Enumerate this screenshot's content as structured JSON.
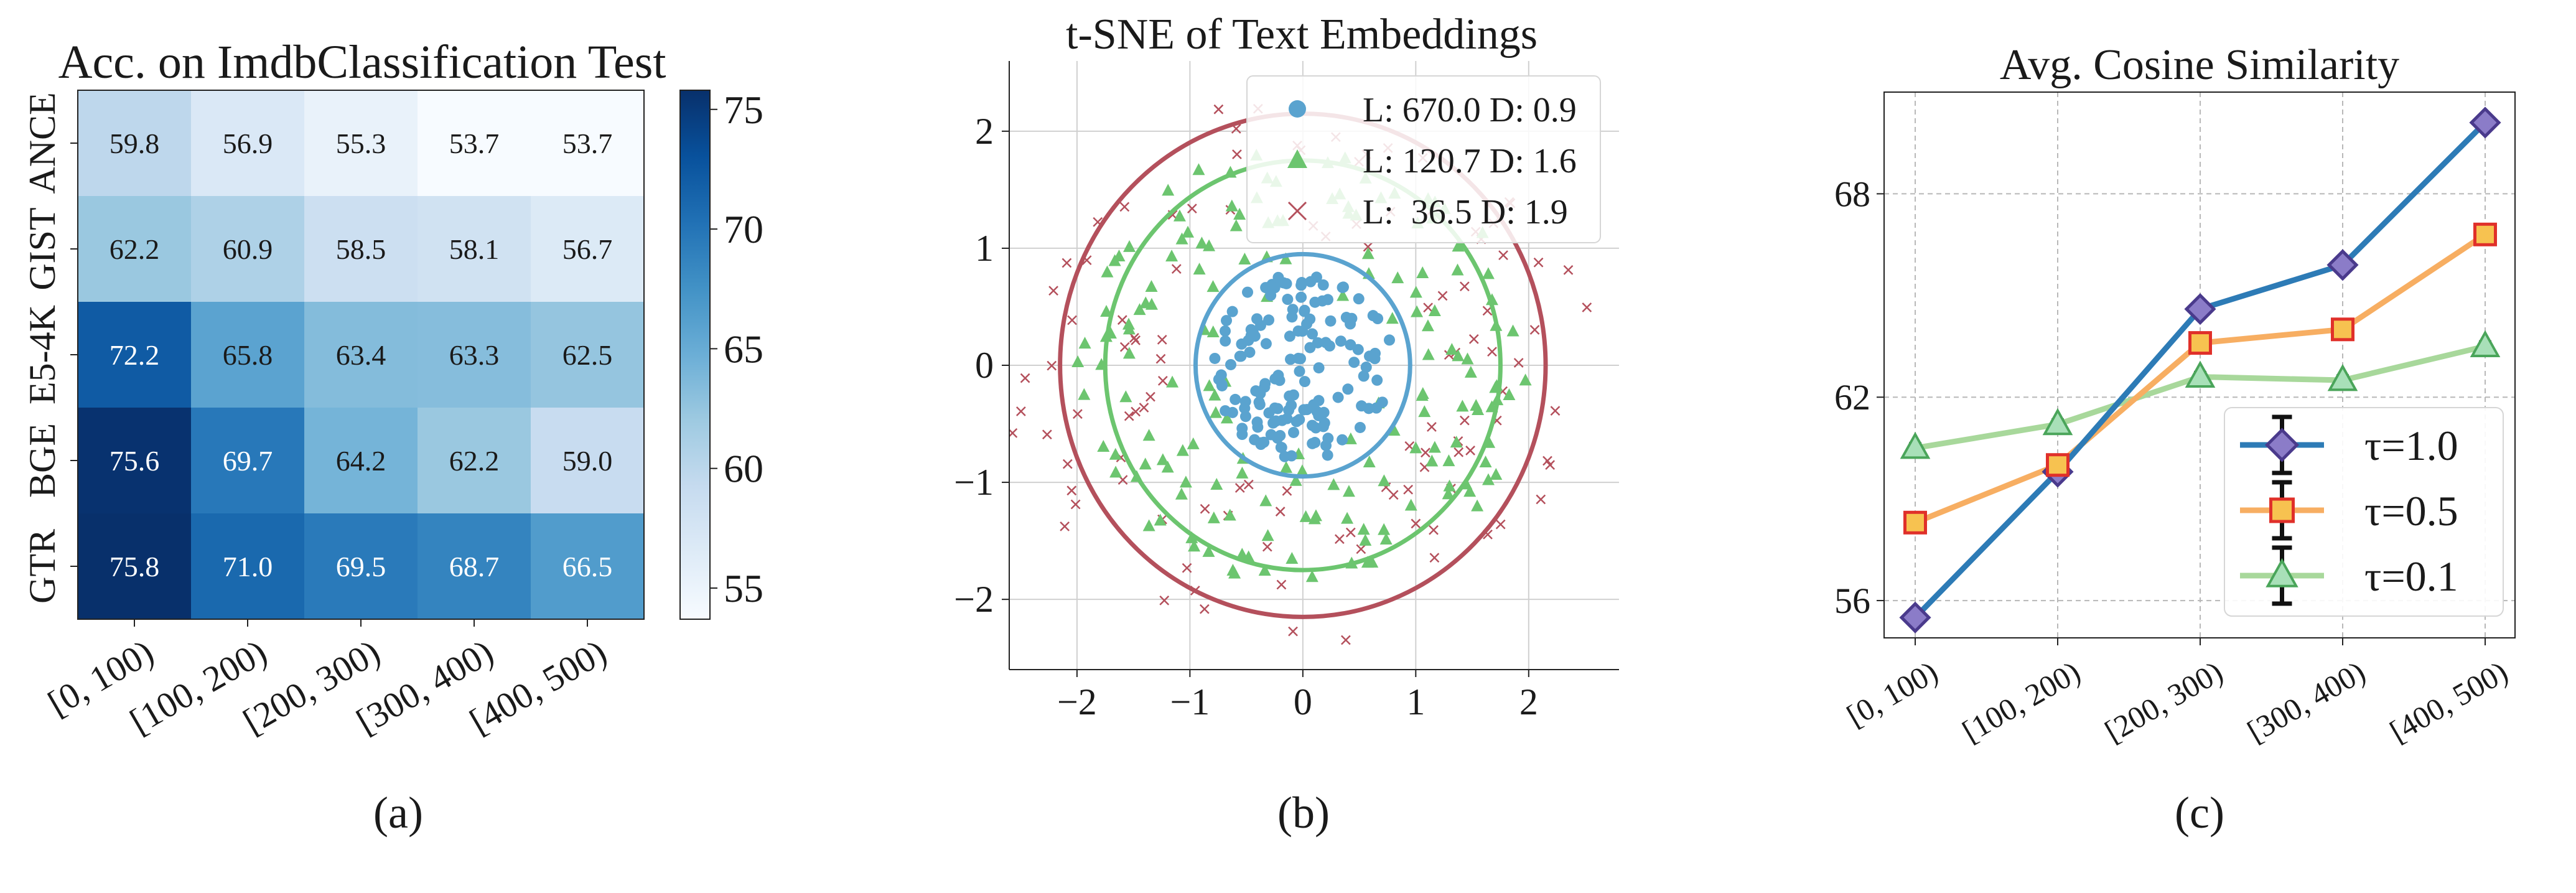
{
  "chart_data": [
    {
      "type": "heatmap",
      "title": "Acc. on ImdbClassification Test",
      "caption": "(a)",
      "rows": [
        "ANCE",
        "GIST",
        "E5-4K",
        "BGE",
        "GTR"
      ],
      "columns": [
        "[0, 100)",
        "[100, 200)",
        "[200, 300)",
        "[300, 400)",
        "[400, 500)"
      ],
      "values": [
        [
          59.8,
          56.9,
          55.3,
          53.7,
          53.7
        ],
        [
          62.2,
          60.9,
          58.5,
          58.1,
          56.7
        ],
        [
          72.2,
          65.8,
          63.4,
          63.3,
          62.5
        ],
        [
          75.6,
          69.7,
          64.2,
          62.2,
          59.0
        ],
        [
          75.8,
          71.0,
          69.5,
          68.7,
          66.5
        ]
      ],
      "colorbar": {
        "min": 53.7,
        "max": 75.8,
        "ticks": [
          "55",
          "60",
          "65",
          "70",
          "75"
        ],
        "tick_values": [
          55,
          60,
          65,
          70,
          75
        ],
        "colormap": "Blues"
      }
    },
    {
      "type": "scatter",
      "title": "t-SNE of Text Embeddings",
      "caption": "(b)",
      "xlim": [
        -2.6,
        2.8
      ],
      "ylim": [
        -2.6,
        2.6
      ],
      "xticks": [
        -2,
        -1,
        0,
        1,
        2
      ],
      "yticks": [
        -2,
        -1,
        0,
        1,
        2
      ],
      "grid": true,
      "legend": "top-right",
      "series": [
        {
          "name": "L: 670.0 D: 0.9",
          "marker": "circle",
          "color": "#5aa3cf",
          "radius": 0.95,
          "count": 150,
          "spread": 0.8
        },
        {
          "name": "L: 120.7 D: 1.6",
          "marker": "triangle",
          "color": "#6cc56f",
          "radius": 1.75,
          "count": 170,
          "spread": 2.0
        },
        {
          "name": "L:  36.5 D: 1.9",
          "marker": "x",
          "color": "#b4505c",
          "radius": 2.15,
          "count": 110,
          "spread": 2.7
        }
      ]
    },
    {
      "type": "line",
      "title": "Avg. Cosine Similarity",
      "caption": "(c)",
      "categories": [
        "[0, 100)",
        "[100, 200)",
        "[200, 300)",
        "[300, 400)",
        "[400, 500)"
      ],
      "ylim": [
        54.9,
        71.0
      ],
      "yticks": [
        56,
        62,
        68
      ],
      "grid": true,
      "legend": "lower-right",
      "series": [
        {
          "name": "τ=1.0",
          "values": [
            55.5,
            59.8,
            64.6,
            65.9,
            70.1
          ],
          "color": "#2d7bb6",
          "marker": "diamond",
          "marker_fill": "#8b7cc8",
          "marker_edge": "#4a3a8c"
        },
        {
          "name": "τ=0.5",
          "values": [
            58.3,
            60.0,
            63.6,
            64.0,
            66.8
          ],
          "color": "#f7ae62",
          "marker": "square",
          "marker_fill": "#f7c250",
          "marker_edge": "#e0302a"
        },
        {
          "name": "τ=0.1",
          "values": [
            60.5,
            61.2,
            62.6,
            62.5,
            63.5
          ],
          "color": "#a8d89b",
          "marker": "triangle",
          "marker_fill": "#a8e0b8",
          "marker_edge": "#4aa55a"
        }
      ]
    }
  ]
}
